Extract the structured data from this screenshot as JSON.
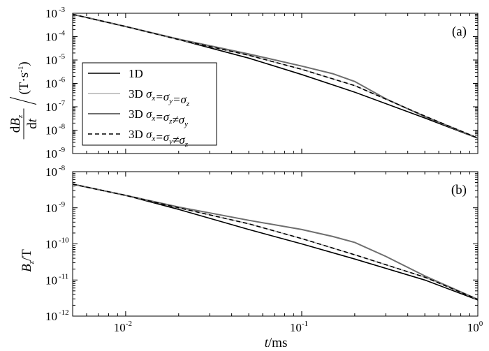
{
  "figure": {
    "x_axis_label": {
      "italic": "t",
      "rest": "/ms"
    }
  },
  "colors": {
    "1D": "#000000",
    "3D_iso": "#b4b4b4",
    "3D_xz": "#6e6e6e",
    "3D_xy": "#000000"
  },
  "chart_data": [
    {
      "type": "line",
      "panel_label": "(a)",
      "ylabel": {
        "top_numerator": "dB",
        "top_sub": "z",
        "bottom": "dt",
        "unit": "(T·s",
        "unit_exp": "-1",
        "unit_close": ")"
      },
      "xscale": "log",
      "yscale": "log",
      "xlim": [
        0.005,
        1.0
      ],
      "ylim": [
        1e-09,
        0.001
      ],
      "x_ticks": [
        {
          "value": 0.01,
          "base": "10",
          "exp": "-2"
        },
        {
          "value": 0.1,
          "base": "10",
          "exp": "-1"
        },
        {
          "value": 1.0,
          "base": "10",
          "exp": "0"
        }
      ],
      "y_ticks": [
        {
          "value": 0.001,
          "base": "10",
          "exp": "-3"
        },
        {
          "value": 0.0001,
          "base": "10",
          "exp": "-4"
        },
        {
          "value": 1e-05,
          "base": "10",
          "exp": "-5"
        },
        {
          "value": 1e-06,
          "base": "10",
          "exp": "-6"
        },
        {
          "value": 1e-07,
          "base": "10",
          "exp": "-7"
        },
        {
          "value": 1e-08,
          "base": "10",
          "exp": "-8"
        },
        {
          "value": 1e-09,
          "base": "10",
          "exp": "-9"
        }
      ],
      "grid": false,
      "legend_position": "left",
      "series": [
        {
          "name": "1D",
          "style": "solid",
          "color": "#000000",
          "x": [
            0.005,
            0.01,
            0.02,
            0.05,
            0.1,
            0.2,
            0.5,
            1.0
          ],
          "y": [
            0.0009,
            0.00027,
            7.5e-05,
            1.2e-05,
            2.4e-06,
            4.2e-07,
            3.3e-08,
            4.5e-09
          ]
        },
        {
          "name": "3D σx=σy=σz",
          "style": "solid",
          "color": "#b4b4b4",
          "x": [
            0.005,
            0.01,
            0.02,
            0.05,
            0.1,
            0.2,
            0.5,
            1.0
          ],
          "y": [
            0.0009,
            0.00027,
            7.5e-05,
            1.6e-05,
            4e-06,
            8e-07,
            4e-08,
            4.6e-09
          ]
        },
        {
          "name": "3D σx=σz≠σy",
          "style": "solid",
          "color": "#6e6e6e",
          "x": [
            0.005,
            0.01,
            0.02,
            0.05,
            0.1,
            0.15,
            0.2,
            0.3,
            0.5,
            1.0
          ],
          "y": [
            0.0009,
            0.00027,
            7.8e-05,
            1.8e-05,
            5.5e-06,
            2.6e-06,
            1.2e-06,
            2.2e-07,
            3.8e-08,
            4.6e-09
          ]
        },
        {
          "name": "3D σx=σy≠σz",
          "style": "dashed",
          "color": "#000000",
          "x": [
            0.005,
            0.01,
            0.02,
            0.05,
            0.1,
            0.2,
            0.5,
            1.0
          ],
          "y": [
            0.0009,
            0.00027,
            7.5e-05,
            1.6e-05,
            4e-06,
            8e-07,
            4e-08,
            4.6e-09
          ]
        }
      ],
      "legend": [
        {
          "lead": "1D"
        },
        {
          "lead": "3D",
          "expr": [
            [
              "σ",
              "x"
            ],
            [
              "=σ",
              "y"
            ],
            [
              "=σ",
              "z"
            ]
          ]
        },
        {
          "lead": "3D",
          "expr": [
            [
              "σ",
              "x"
            ],
            [
              "=σ",
              "z"
            ],
            [
              "≠σ",
              "y"
            ]
          ]
        },
        {
          "lead": "3D",
          "expr": [
            [
              "σ",
              "x"
            ],
            [
              "=σ",
              "y"
            ],
            [
              "≠σ",
              "z"
            ]
          ]
        }
      ]
    },
    {
      "type": "line",
      "panel_label": "(b)",
      "ylabel": {
        "main": "B",
        "sub": "z",
        "rest": "/T"
      },
      "xscale": "log",
      "yscale": "log",
      "xlim": [
        0.005,
        1.0
      ],
      "ylim": [
        1e-12,
        1e-08
      ],
      "x_ticks": [
        {
          "value": 0.01,
          "base": "10",
          "exp": "-2"
        },
        {
          "value": 0.1,
          "base": "10",
          "exp": "-1"
        },
        {
          "value": 1.0,
          "base": "10",
          "exp": "0"
        }
      ],
      "y_ticks": [
        {
          "value": 1e-08,
          "base": "10",
          "exp": "-8"
        },
        {
          "value": 1e-09,
          "base": "10",
          "exp": "-9"
        },
        {
          "value": 1e-10,
          "base": "10",
          "exp": "-10"
        },
        {
          "value": 1e-11,
          "base": "10",
          "exp": "-11"
        },
        {
          "value": 1e-12,
          "base": "10",
          "exp": "-12"
        }
      ],
      "grid": false,
      "series": [
        {
          "name": "1D",
          "style": "solid",
          "color": "#000000",
          "x": [
            0.005,
            0.01,
            0.02,
            0.05,
            0.1,
            0.2,
            0.5,
            1.0
          ],
          "y": [
            4.5e-09,
            2.2e-09,
            9e-10,
            2.5e-10,
            1e-10,
            3.8e-11,
            1e-11,
            2.8e-12
          ]
        },
        {
          "name": "3D σx=σy=σz",
          "style": "solid",
          "color": "#b4b4b4",
          "x": [
            0.005,
            0.01,
            0.02,
            0.05,
            0.1,
            0.2,
            0.5,
            1.0
          ],
          "y": [
            4.5e-09,
            2.2e-09,
            1e-09,
            3.6e-10,
            1.4e-10,
            5e-11,
            1.2e-11,
            2.9e-12
          ]
        },
        {
          "name": "3D σx=σz≠σy",
          "style": "solid",
          "color": "#6e6e6e",
          "x": [
            0.005,
            0.01,
            0.02,
            0.05,
            0.1,
            0.15,
            0.2,
            0.3,
            0.5,
            1.0
          ],
          "y": [
            4.5e-09,
            2.2e-09,
            1.05e-09,
            4.5e-10,
            2.5e-10,
            1.6e-10,
            1.1e-10,
            4.5e-11,
            1.3e-11,
            2.9e-12
          ]
        },
        {
          "name": "3D σx=σy≠σz",
          "style": "dashed",
          "color": "#000000",
          "x": [
            0.005,
            0.01,
            0.02,
            0.05,
            0.1,
            0.2,
            0.5,
            1.0
          ],
          "y": [
            4.5e-09,
            2.2e-09,
            1e-09,
            3.6e-10,
            1.4e-10,
            5e-11,
            1.2e-11,
            2.9e-12
          ]
        }
      ]
    }
  ]
}
